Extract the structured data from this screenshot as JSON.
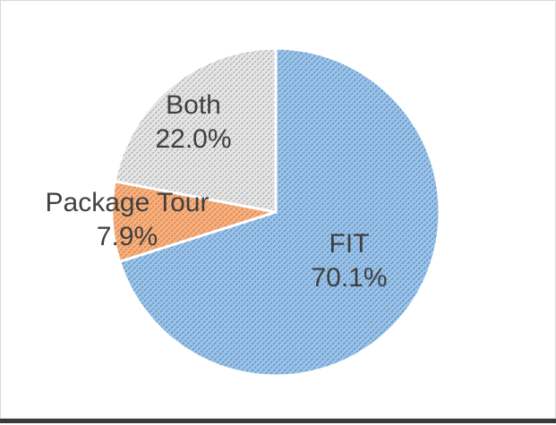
{
  "chart_data": {
    "type": "pie",
    "slices": [
      {
        "name": "FIT",
        "value": 70.1,
        "value_label": "70.1%",
        "color": "#9dc3e6",
        "hatch": "#4f88c6"
      },
      {
        "name": "Package Tour",
        "value": 7.9,
        "value_label": "7.9%",
        "color": "#f4b183",
        "hatch": "#e0772f"
      },
      {
        "name": "Both",
        "value": 22.0,
        "value_label": "22.0%",
        "color": "#e7e6e6",
        "hatch": "#a6a6a6"
      }
    ],
    "start": "12 o'clock",
    "direction": "clockwise",
    "legend": "none"
  }
}
